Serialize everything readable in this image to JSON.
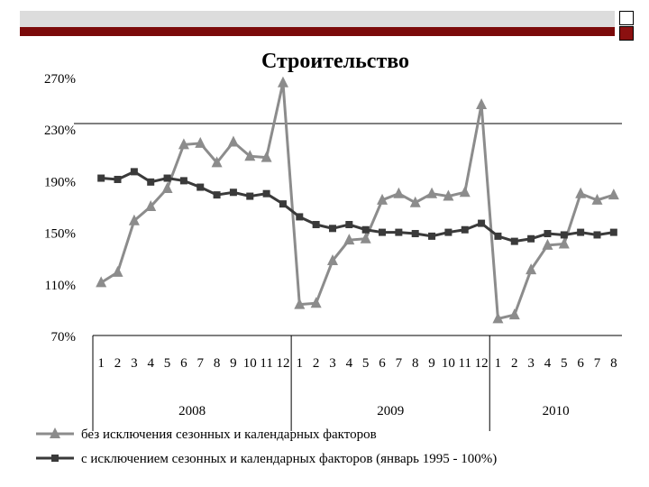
{
  "chart_data": {
    "type": "line",
    "title": "Строительство",
    "xlabel": "",
    "ylabel": "",
    "ylim": [
      70,
      270
    ],
    "yticks": [
      "70%",
      "110%",
      "150%",
      "190%",
      "230%",
      "270%"
    ],
    "grid": false,
    "legend_position": "bottom",
    "months": [
      "1",
      "2",
      "3",
      "4",
      "5",
      "6",
      "7",
      "8",
      "9",
      "10",
      "11",
      "12",
      "1",
      "2",
      "3",
      "4",
      "5",
      "6",
      "7",
      "8",
      "9",
      "10",
      "11",
      "12",
      "1",
      "2",
      "3",
      "4",
      "5",
      "6",
      "7",
      "8"
    ],
    "years": [
      {
        "label": "2008",
        "months": 12
      },
      {
        "label": "2009",
        "months": 12
      },
      {
        "label": "2010",
        "months": 8
      }
    ],
    "series": [
      {
        "name": "без исключения сезонных и календарных факторов",
        "color": "#8c8c8c",
        "marker": "triangle",
        "values": [
          111,
          119,
          159,
          170,
          184,
          218,
          219,
          204,
          220,
          209,
          208,
          266,
          94,
          95,
          128,
          144,
          145,
          175,
          180,
          173,
          180,
          178,
          181,
          249,
          83,
          86,
          121,
          140,
          141,
          180,
          175,
          179
        ]
      },
      {
        "name": "с исключением сезонных и календарных факторов (январь 1995 - 100%)",
        "color": "#3a3a3a",
        "marker": "square",
        "values": [
          192,
          191,
          197,
          189,
          192,
          190,
          185,
          179,
          181,
          178,
          180,
          172,
          162,
          156,
          153,
          156,
          152,
          150,
          150,
          149,
          147,
          150,
          152,
          157,
          147,
          143,
          145,
          149,
          148,
          150,
          148,
          150
        ]
      }
    ]
  }
}
